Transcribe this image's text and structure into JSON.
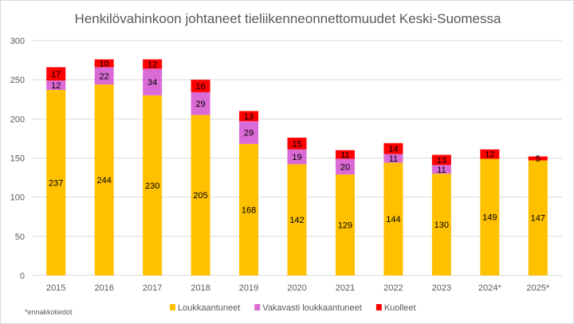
{
  "chart_data": {
    "type": "bar",
    "stacked": true,
    "title": "Henkilövahinkoon johtaneet tieliikenneonnettomuudet Keski-Suomessa",
    "categories": [
      "2015",
      "2016",
      "2017",
      "2018",
      "2019",
      "2020",
      "2021",
      "2022",
      "2023",
      "2024*",
      "2025*"
    ],
    "series": [
      {
        "name": "Loukkaantuneet",
        "color": "#FFC000",
        "values": [
          237,
          244,
          230,
          205,
          168,
          142,
          129,
          144,
          130,
          149,
          147
        ]
      },
      {
        "name": "Vakavasti loukkaantuneet",
        "color": "#DA6BD6",
        "values": [
          12,
          22,
          34,
          29,
          29,
          19,
          20,
          11,
          11,
          null,
          null
        ]
      },
      {
        "name": "Kuolleet",
        "color": "#FF0000",
        "values": [
          17,
          10,
          12,
          16,
          13,
          15,
          11,
          14,
          13,
          12,
          5
        ]
      }
    ],
    "ylim": [
      0,
      300
    ],
    "yticks": [
      0,
      50,
      100,
      150,
      200,
      250,
      300
    ],
    "grid": true,
    "legend": "bottom",
    "footnote": "*ennakkotiedot"
  }
}
